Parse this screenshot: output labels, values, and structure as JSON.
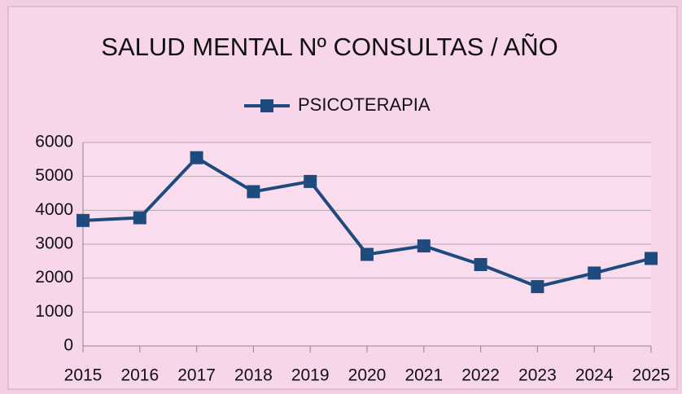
{
  "chart_data": {
    "type": "line",
    "title": "SALUD MENTAL Nº CONSULTAS / AÑO",
    "categories": [
      "2015",
      "2016",
      "2017",
      "2018",
      "2019",
      "2020",
      "2021",
      "2022",
      "2023",
      "2024",
      "2025"
    ],
    "series": [
      {
        "name": "PSICOTERAPIA",
        "color": "#1f4a7e",
        "values": [
          3700,
          3780,
          5550,
          4550,
          4850,
          2700,
          2950,
          2400,
          1750,
          2150,
          2580
        ]
      }
    ],
    "ylim": [
      0,
      6000
    ],
    "yticks": [
      0,
      1000,
      2000,
      3000,
      4000,
      5000,
      6000
    ],
    "grid": true
  }
}
